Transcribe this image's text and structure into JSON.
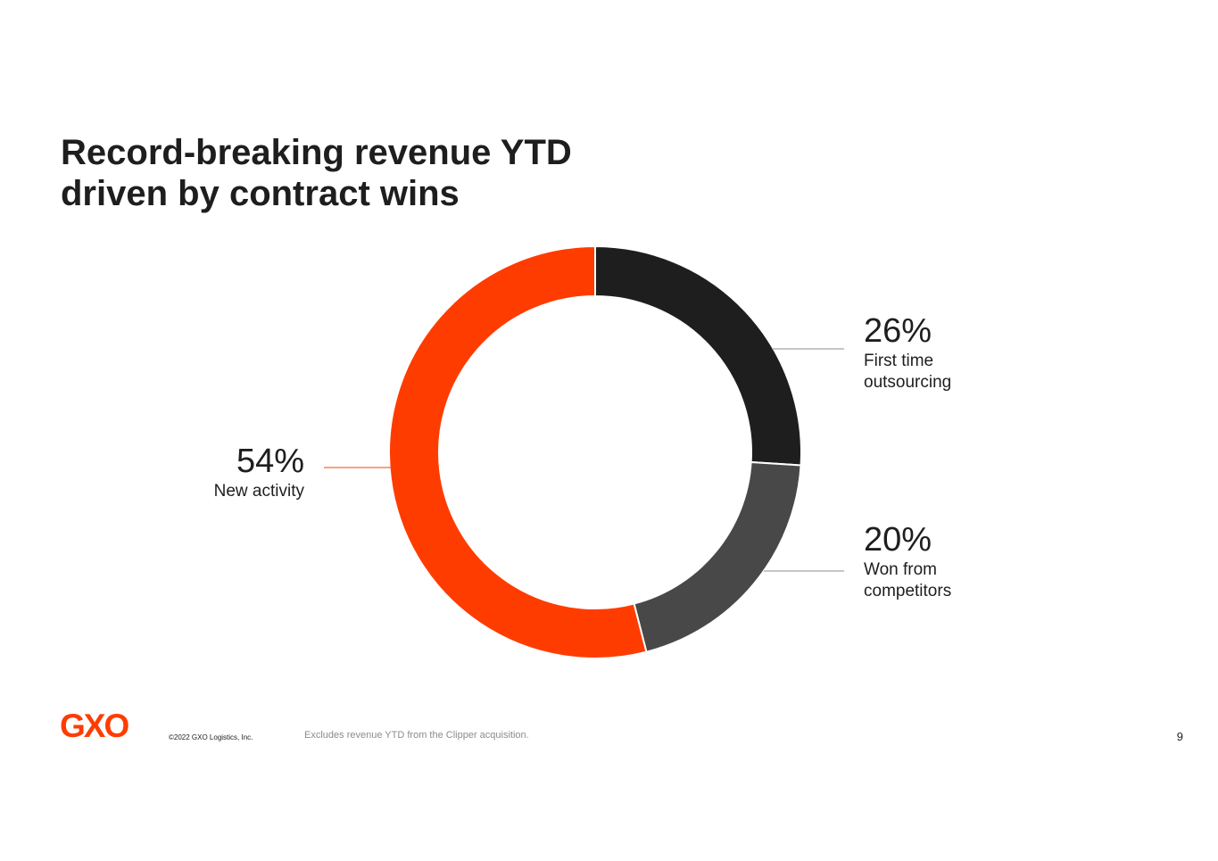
{
  "slide": {
    "title_line1": "Record-breaking revenue YTD",
    "title_line2": "driven by contract wins",
    "logo_text": "GXO",
    "copyright": "©2022 GXO Logistics, Inc.",
    "footnote": "Excludes revenue YTD from the Clipper acquisition.",
    "page_number": "9"
  },
  "colors": {
    "accent": "#ff3c00",
    "dark": "#1e1e1e",
    "gray": "#484848",
    "leader_gray": "#8c8c8c"
  },
  "chart_data": {
    "type": "pie",
    "style": "donut",
    "slices": [
      {
        "label_line1": "First time",
        "label_line2": "outsourcing",
        "value": 26,
        "value_label": "26%",
        "color": "#1e1e1e"
      },
      {
        "label_line1": "Won from",
        "label_line2": "competitors",
        "value": 20,
        "value_label": "20%",
        "color": "#484848"
      },
      {
        "label_line1": "New activity",
        "label_line2": "",
        "value": 54,
        "value_label": "54%",
        "color": "#ff3c00"
      }
    ],
    "start": "12 o'clock",
    "direction": "clockwise"
  }
}
